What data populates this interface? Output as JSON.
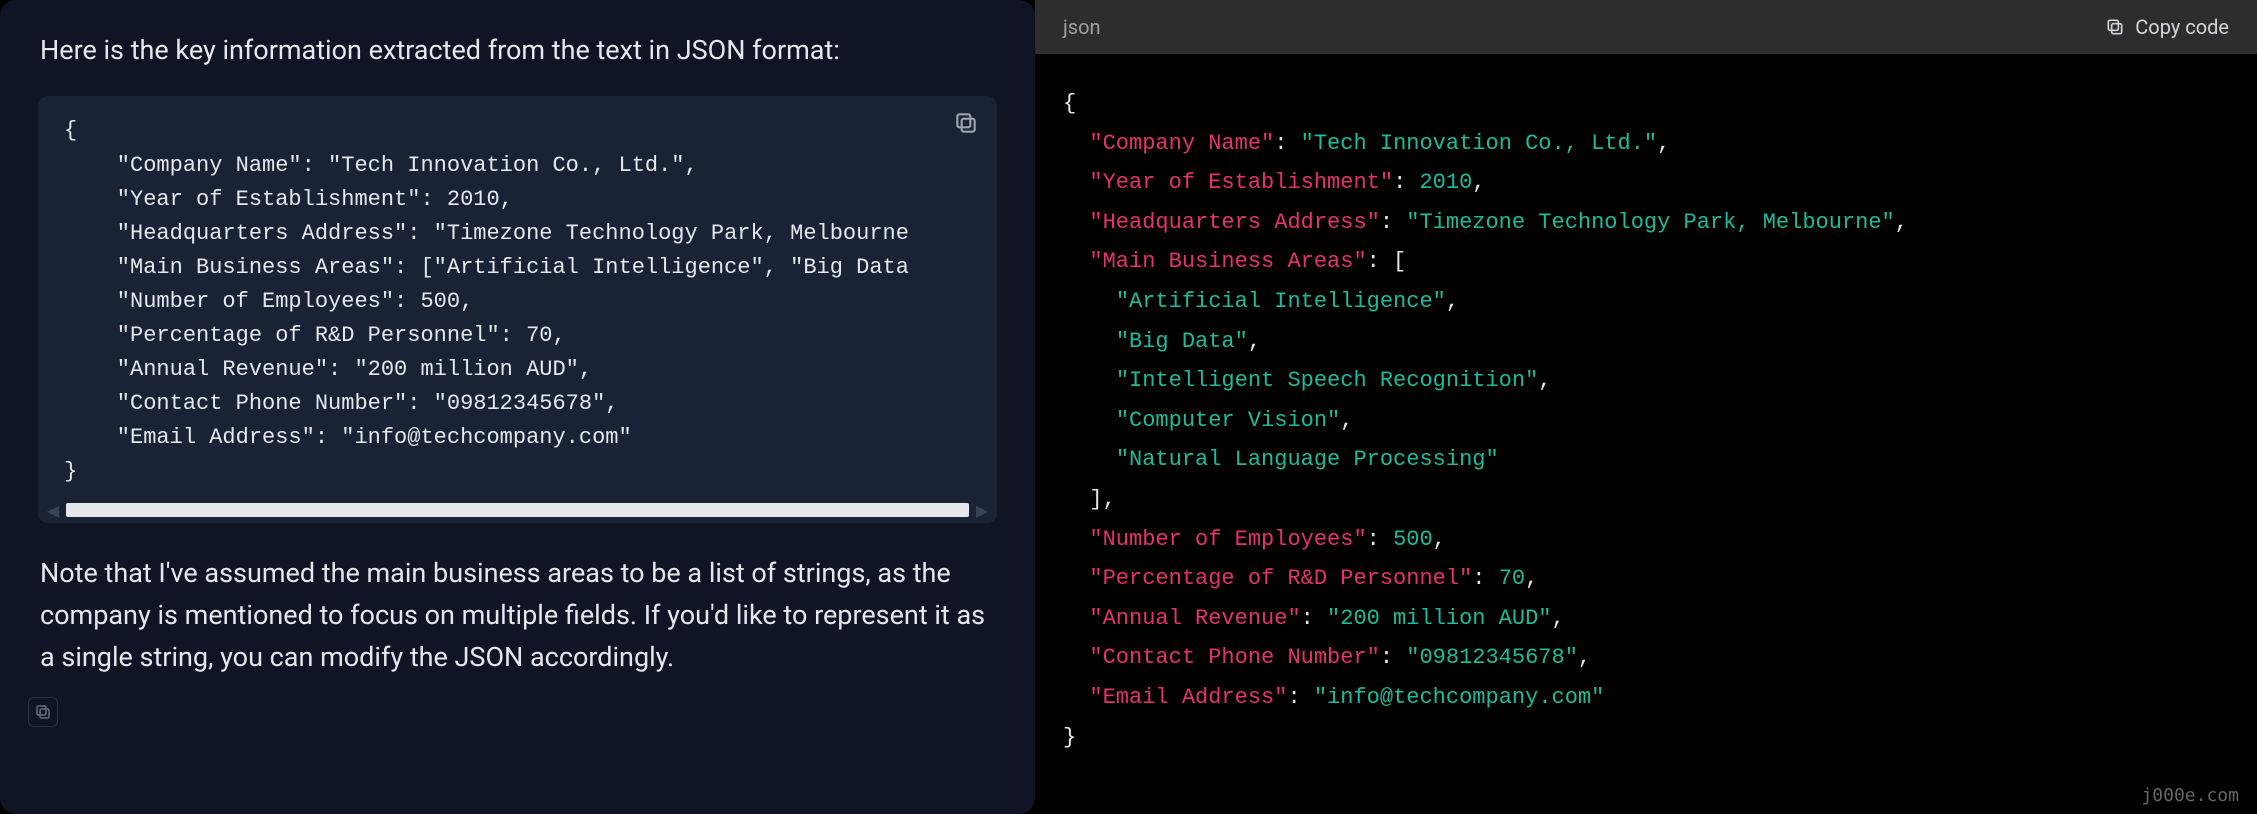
{
  "left": {
    "intro": "Here is the key information extracted from the text in JSON format:",
    "code": "{\n    \"Company Name\": \"Tech Innovation Co., Ltd.\",\n    \"Year of Establishment\": 2010,\n    \"Headquarters Address\": \"Timezone Technology Park, Melbourne\n    \"Main Business Areas\": [\"Artificial Intelligence\", \"Big Data\n    \"Number of Employees\": 500,\n    \"Percentage of R&D Personnel\": 70,\n    \"Annual Revenue\": \"200 million AUD\",\n    \"Contact Phone Number\": \"09812345678\",\n    \"Email Address\": \"info@techcompany.com\"\n}",
    "note": "Note that I've assumed the main business areas to be a list of strings, as the company is mentioned to focus on multiple fields. If you'd like to represent it as a single string, you can modify the JSON accordingly."
  },
  "right": {
    "lang": "json",
    "copy_label": "Copy code",
    "lines": [
      [
        {
          "t": "br",
          "v": "{"
        }
      ],
      [
        {
          "t": "p",
          "v": "  "
        },
        {
          "t": "k",
          "v": "\"Company Name\""
        },
        {
          "t": "p",
          "v": ": "
        },
        {
          "t": "s",
          "v": "\"Tech Innovation Co., Ltd.\""
        },
        {
          "t": "p",
          "v": ","
        }
      ],
      [
        {
          "t": "p",
          "v": "  "
        },
        {
          "t": "k",
          "v": "\"Year of Establishment\""
        },
        {
          "t": "p",
          "v": ": "
        },
        {
          "t": "n",
          "v": "2010"
        },
        {
          "t": "p",
          "v": ","
        }
      ],
      [
        {
          "t": "p",
          "v": "  "
        },
        {
          "t": "k",
          "v": "\"Headquarters Address\""
        },
        {
          "t": "p",
          "v": ": "
        },
        {
          "t": "s",
          "v": "\"Timezone Technology Park, Melbourne\""
        },
        {
          "t": "p",
          "v": ","
        }
      ],
      [
        {
          "t": "p",
          "v": "  "
        },
        {
          "t": "k",
          "v": "\"Main Business Areas\""
        },
        {
          "t": "p",
          "v": ": ["
        }
      ],
      [
        {
          "t": "p",
          "v": "    "
        },
        {
          "t": "s",
          "v": "\"Artificial Intelligence\""
        },
        {
          "t": "p",
          "v": ","
        }
      ],
      [
        {
          "t": "p",
          "v": "    "
        },
        {
          "t": "s",
          "v": "\"Big Data\""
        },
        {
          "t": "p",
          "v": ","
        }
      ],
      [
        {
          "t": "p",
          "v": "    "
        },
        {
          "t": "s",
          "v": "\"Intelligent Speech Recognition\""
        },
        {
          "t": "p",
          "v": ","
        }
      ],
      [
        {
          "t": "p",
          "v": "    "
        },
        {
          "t": "s",
          "v": "\"Computer Vision\""
        },
        {
          "t": "p",
          "v": ","
        }
      ],
      [
        {
          "t": "p",
          "v": "    "
        },
        {
          "t": "s",
          "v": "\"Natural Language Processing\""
        }
      ],
      [
        {
          "t": "p",
          "v": "  ],"
        }
      ],
      [
        {
          "t": "p",
          "v": "  "
        },
        {
          "t": "k",
          "v": "\"Number of Employees\""
        },
        {
          "t": "p",
          "v": ": "
        },
        {
          "t": "n",
          "v": "500"
        },
        {
          "t": "p",
          "v": ","
        }
      ],
      [
        {
          "t": "p",
          "v": "  "
        },
        {
          "t": "k",
          "v": "\"Percentage of R&D Personnel\""
        },
        {
          "t": "p",
          "v": ": "
        },
        {
          "t": "n",
          "v": "70"
        },
        {
          "t": "p",
          "v": ","
        }
      ],
      [
        {
          "t": "p",
          "v": "  "
        },
        {
          "t": "k",
          "v": "\"Annual Revenue\""
        },
        {
          "t": "p",
          "v": ": "
        },
        {
          "t": "s",
          "v": "\"200 million AUD\""
        },
        {
          "t": "p",
          "v": ","
        }
      ],
      [
        {
          "t": "p",
          "v": "  "
        },
        {
          "t": "k",
          "v": "\"Contact Phone Number\""
        },
        {
          "t": "p",
          "v": ": "
        },
        {
          "t": "s",
          "v": "\"09812345678\""
        },
        {
          "t": "p",
          "v": ","
        }
      ],
      [
        {
          "t": "p",
          "v": "  "
        },
        {
          "t": "k",
          "v": "\"Email Address\""
        },
        {
          "t": "p",
          "v": ": "
        },
        {
          "t": "s",
          "v": "\"info@techcompany.com\""
        }
      ],
      [
        {
          "t": "br",
          "v": "}"
        }
      ]
    ]
  },
  "watermark": "j000e.com",
  "colors": {
    "left_bg": "#0f1525",
    "left_code_bg": "#1a2235",
    "right_header_bg": "#2d2d2d",
    "right_code_bg": "#000000",
    "key": "#e6316f",
    "string": "#1abc9c",
    "punct": "#e5e7eb"
  }
}
